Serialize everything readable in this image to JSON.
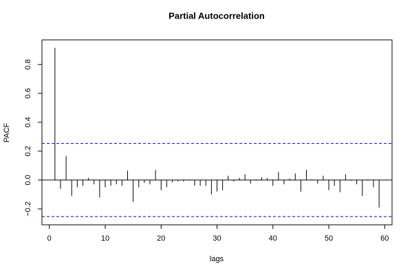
{
  "chart_data": {
    "type": "pacf",
    "title": "Partial Autocorrelation",
    "x_label": "lags",
    "y_label": "PACF",
    "x": [
      1,
      2,
      3,
      4,
      5,
      6,
      7,
      8,
      9,
      10,
      11,
      12,
      13,
      14,
      15,
      16,
      17,
      18,
      19,
      20,
      21,
      22,
      23,
      24,
      25,
      26,
      27,
      28,
      29,
      30,
      31,
      32,
      33,
      34,
      35,
      36,
      37,
      38,
      39,
      40,
      41,
      42,
      43,
      44,
      45,
      46,
      47,
      48,
      49,
      50,
      51,
      52,
      53,
      54,
      55,
      56,
      57,
      58,
      59
    ],
    "values": [
      0.915,
      -0.06,
      0.165,
      -0.11,
      -0.05,
      -0.04,
      0.015,
      -0.03,
      -0.12,
      -0.05,
      -0.04,
      -0.03,
      -0.04,
      0.065,
      -0.15,
      -0.05,
      -0.02,
      -0.03,
      0.07,
      -0.07,
      -0.05,
      -0.015,
      -0.01,
      -0.01,
      0.005,
      -0.04,
      -0.04,
      -0.04,
      -0.1,
      -0.08,
      -0.07,
      0.03,
      -0.01,
      0.015,
      0.04,
      -0.025,
      0.005,
      0.02,
      0.015,
      -0.04,
      0.055,
      -0.03,
      0.01,
      0.045,
      -0.08,
      0.07,
      0.005,
      -0.025,
      0.03,
      -0.07,
      -0.04,
      -0.085,
      0.04,
      -0.005,
      -0.03,
      -0.11,
      0.005,
      -0.05,
      -0.19
    ],
    "color": "#000000",
    "conf_limits": [
      0.253,
      -0.253
    ],
    "conf_color": "#0000cc",
    "xlim": [
      -1.32,
      61.32
    ],
    "ylim": [
      -0.31,
      0.97
    ],
    "xticks": [
      0,
      10,
      20,
      30,
      40,
      50,
      60
    ],
    "yticks": [
      {
        "value": -0.2,
        "label": "−0.2"
      },
      {
        "value": 0,
        "label": "0.0"
      },
      {
        "value": 0.2,
        "label": "0.2"
      },
      {
        "value": 0.4,
        "label": "0.4"
      },
      {
        "value": 0.6,
        "label": "0.6"
      },
      {
        "value": 0.8,
        "label": "0.8"
      }
    ]
  }
}
